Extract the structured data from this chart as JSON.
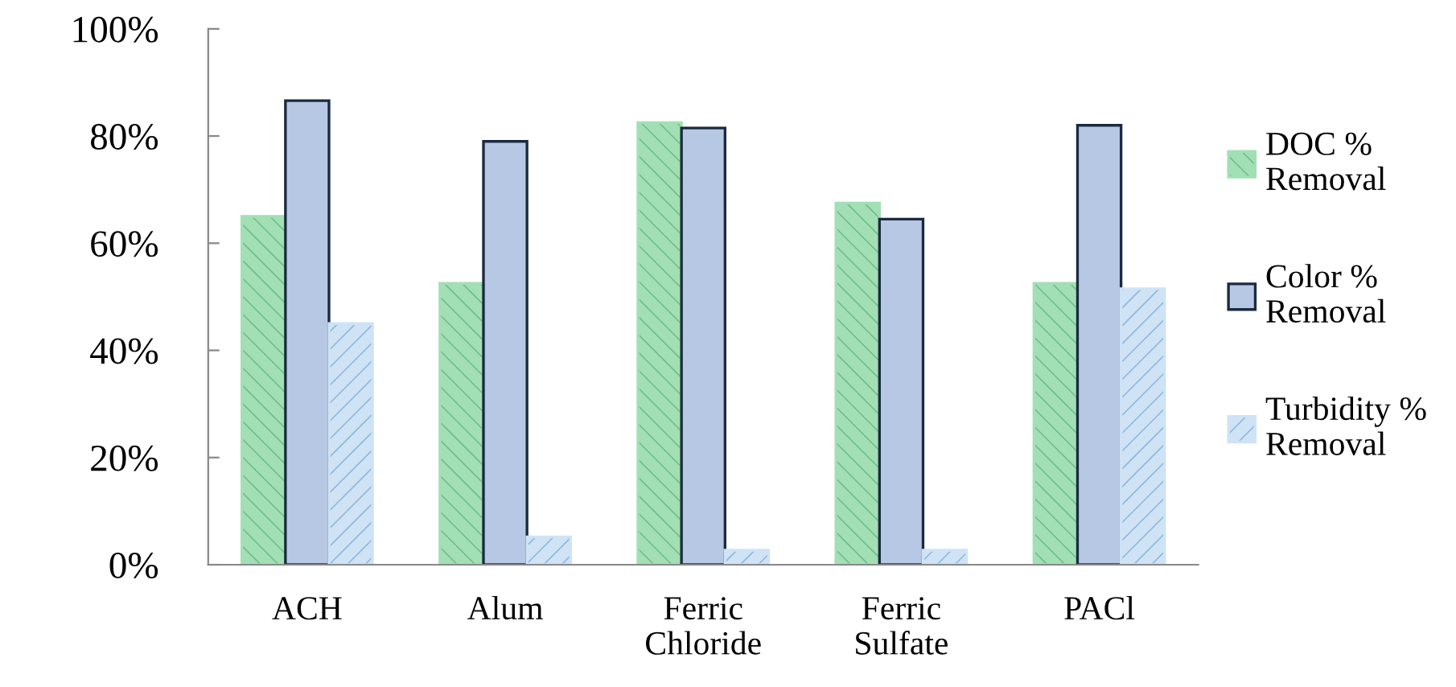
{
  "chart_data": {
    "type": "bar",
    "categories": [
      "ACH",
      "Alum",
      "Ferric\nChloride",
      "Ferric\nSulfate",
      "PACl"
    ],
    "series": [
      {
        "name": "DOC %\nRemoval",
        "color": "#a3dfb5",
        "values": [
          65,
          52.5,
          82.5,
          67.5,
          52.5
        ]
      },
      {
        "name": "Color %\nRemoval",
        "color": "#b7c8e4",
        "values": [
          86.6,
          79,
          81.5,
          64.5,
          82
        ]
      },
      {
        "name": "Turbidity %\nRemoval",
        "color": "#cfe3f5",
        "values": [
          45,
          5.2,
          2.7,
          2.7,
          51.5
        ]
      }
    ],
    "ylim": [
      0,
      100
    ],
    "yticks": [
      {
        "value": 0,
        "label": "0%"
      },
      {
        "value": 20,
        "label": "20%"
      },
      {
        "value": 40,
        "label": "40%"
      },
      {
        "value": 60,
        "label": "60%"
      },
      {
        "value": 80,
        "label": "80%"
      },
      {
        "value": 100,
        "label": "100%"
      }
    ],
    "grid": false,
    "legend": "right"
  }
}
